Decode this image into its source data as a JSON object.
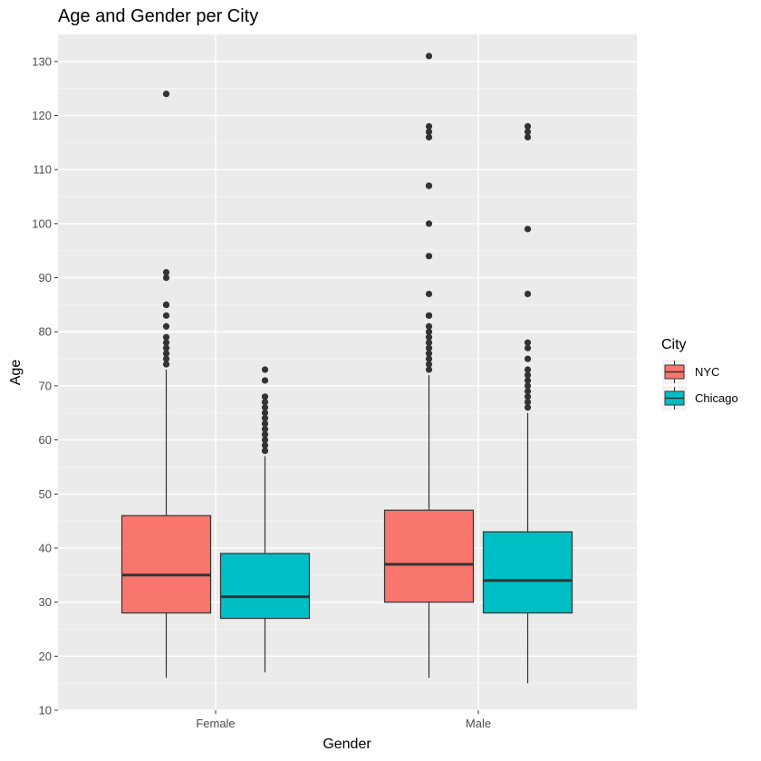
{
  "chart_data": {
    "type": "boxplot",
    "title": "Age and Gender per City",
    "xlabel": "Gender",
    "ylabel": "Age",
    "categories": [
      "Female",
      "Male"
    ],
    "ylim": [
      10,
      135
    ],
    "yticks": [
      10,
      20,
      30,
      40,
      50,
      60,
      70,
      80,
      90,
      100,
      110,
      120,
      130
    ],
    "grid": true,
    "legend": {
      "title": "City",
      "position": "right"
    },
    "series": [
      {
        "name": "NYC",
        "color": "#F8766D",
        "boxes": [
          {
            "category": "Female",
            "min": 16,
            "q1": 28,
            "median": 35,
            "q3": 46,
            "max": 73,
            "outliers": [
              74,
              75,
              76,
              77,
              78,
              79,
              81,
              83,
              85,
              85,
              90,
              91,
              124
            ]
          },
          {
            "category": "Male",
            "min": 16,
            "q1": 30,
            "median": 37,
            "q3": 47,
            "max": 72,
            "outliers": [
              73,
              74,
              75,
              76,
              77,
              78,
              79,
              80,
              81,
              83,
              83,
              87,
              94,
              100,
              107,
              107,
              116,
              117,
              118,
              131
            ]
          }
        ]
      },
      {
        "name": "Chicago",
        "color": "#00BFC4",
        "boxes": [
          {
            "category": "Female",
            "min": 17,
            "q1": 27,
            "median": 31,
            "q3": 39,
            "max": 57,
            "outliers": [
              58,
              59,
              60,
              61,
              62,
              63,
              64,
              65,
              66,
              67,
              68,
              71,
              73
            ]
          },
          {
            "category": "Male",
            "min": 15,
            "q1": 28,
            "median": 34,
            "q3": 43,
            "max": 65,
            "outliers": [
              66,
              67,
              68,
              69,
              70,
              71,
              72,
              73,
              75,
              77,
              78,
              87,
              99,
              116,
              117,
              118
            ]
          }
        ]
      }
    ]
  }
}
